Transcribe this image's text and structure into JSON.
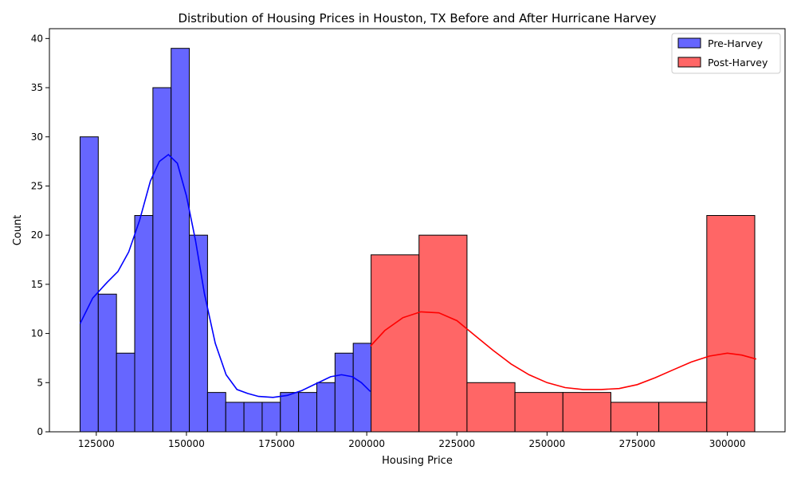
{
  "chart_data": {
    "type": "histogram",
    "title": "Distribution of Housing Prices in Houston, TX Before and After Hurricane Harvey",
    "xlabel": "Housing Price",
    "ylabel": "Count",
    "xlim": [
      112000,
      316000
    ],
    "ylim": [
      0,
      41
    ],
    "xticks": [
      125000,
      150000,
      175000,
      200000,
      225000,
      250000,
      275000,
      300000
    ],
    "yticks": [
      0,
      5,
      10,
      15,
      20,
      25,
      30,
      35,
      40
    ],
    "legend_position": "top-right",
    "grid": false,
    "series": [
      {
        "name": "Pre-Harvey",
        "fill": "#6666ff",
        "line": "#0000ff",
        "bin_start": 120500,
        "bin_width": 5050,
        "counts": [
          30,
          14,
          8,
          22,
          35,
          39,
          20,
          4,
          3,
          3,
          3,
          4,
          4,
          5,
          8,
          9
        ],
        "kde": [
          [
            120500,
            11
          ],
          [
            124000,
            13.6
          ],
          [
            128000,
            15.2
          ],
          [
            131000,
            16.3
          ],
          [
            134000,
            18.3
          ],
          [
            137000,
            21.5
          ],
          [
            140000,
            25.5
          ],
          [
            142500,
            27.5
          ],
          [
            145000,
            28.2
          ],
          [
            147500,
            27.3
          ],
          [
            150000,
            24
          ],
          [
            152500,
            19.5
          ],
          [
            155000,
            14
          ],
          [
            158000,
            9
          ],
          [
            161000,
            5.8
          ],
          [
            164000,
            4.3
          ],
          [
            167000,
            3.9
          ],
          [
            170000,
            3.6
          ],
          [
            174000,
            3.5
          ],
          [
            178000,
            3.7
          ],
          [
            182000,
            4.2
          ],
          [
            186000,
            4.9
          ],
          [
            190000,
            5.6
          ],
          [
            193000,
            5.8
          ],
          [
            196000,
            5.6
          ],
          [
            198500,
            5
          ],
          [
            201000,
            4.1
          ]
        ]
      },
      {
        "name": "Post-Harvey",
        "fill": "#ff6666",
        "line": "#ff0000",
        "bin_start": 201200,
        "bin_width": 13300,
        "counts": [
          18,
          20,
          5,
          4,
          4,
          3,
          3,
          22
        ],
        "kde": [
          [
            201000,
            8.7
          ],
          [
            205000,
            10.3
          ],
          [
            210000,
            11.6
          ],
          [
            215000,
            12.2
          ],
          [
            220000,
            12.1
          ],
          [
            225000,
            11.3
          ],
          [
            230000,
            9.8
          ],
          [
            235000,
            8.3
          ],
          [
            240000,
            6.9
          ],
          [
            245000,
            5.8
          ],
          [
            250000,
            5
          ],
          [
            255000,
            4.5
          ],
          [
            260000,
            4.3
          ],
          [
            265000,
            4.3
          ],
          [
            270000,
            4.4
          ],
          [
            275000,
            4.8
          ],
          [
            280000,
            5.5
          ],
          [
            285000,
            6.3
          ],
          [
            290000,
            7.1
          ],
          [
            295000,
            7.7
          ],
          [
            300000,
            8
          ],
          [
            304000,
            7.8
          ],
          [
            308000,
            7.4
          ]
        ]
      }
    ]
  }
}
